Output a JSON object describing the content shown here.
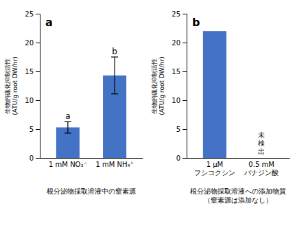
{
  "chart_data": [
    {
      "type": "bar",
      "title": "a",
      "categories": [
        "1 mM NO₃⁻",
        "1 mM NH₄⁺"
      ],
      "values": [
        5.3,
        14.3
      ],
      "errors": [
        1.0,
        3.2
      ],
      "color": "#4472C4",
      "ylim": [
        0,
        25
      ],
      "yticks": [
        0,
        5,
        10,
        15,
        20,
        25
      ],
      "grid": false,
      "y_label": "生物的硥化抑制活性\n(ATU/g root DW/hr)",
      "x_label": "根分泌物採取溶液中の窒素源",
      "annotations": [
        {
          "text": "a",
          "category": "1 mM NO₃⁻"
        },
        {
          "text": "b",
          "category": "1 mM NH₄⁺"
        }
      ]
    },
    {
      "type": "bar",
      "title": "b",
      "categories": [
        "1 μM\nフシコクシン",
        "0.5 mM\nバナジン酸"
      ],
      "values": [
        22.0,
        null
      ],
      "color": "#4472C4",
      "ylim": [
        0,
        25
      ],
      "yticks": [
        0,
        5,
        10,
        15,
        20,
        25
      ],
      "grid": false,
      "y_label": "生物的硥化抑制活性\n(ATU/g root DW/hr)",
      "x_label": "根分泌物採取溶液への添加物質\n（窒素源は添加なし）",
      "annotations": [
        {
          "text": "未\n検\n出",
          "category": "0.5 mM\nバナジン酸"
        }
      ]
    }
  ]
}
